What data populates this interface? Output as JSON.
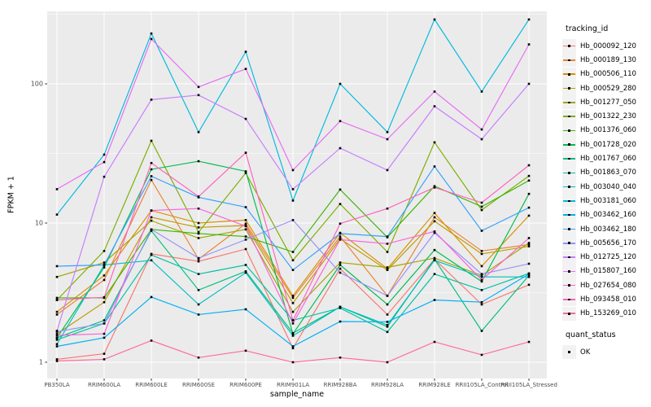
{
  "chart_data": {
    "type": "line",
    "x_title": "sample_name",
    "y_title": "FPKM + 1",
    "y_scale": "log10",
    "ylim": [
      1,
      330
    ],
    "grid": "white major and minor gridlines on gray panel",
    "legend_position": "right",
    "panel_bg": "#EBEBEB",
    "key_bg": "#F2F2F2",
    "axis_text_color": "#4D4D4D",
    "y_ticks": [
      {
        "label": "1",
        "value": 1
      },
      {
        "label": "10",
        "value": 10
      },
      {
        "label": "100",
        "value": 100
      }
    ],
    "categories": [
      "PB350LA",
      "RRIM600LA",
      "RRIM600LE",
      "RRIM600SE",
      "RRIM600PE",
      "RRIM901LA",
      "RRIM928BA",
      "RRIM928LA",
      "RRIM928LE",
      "RRII105LA_Control",
      "RRII105LA_Stressed"
    ],
    "series": [
      {
        "name": "Hb_000092_120",
        "color": "#F8766D",
        "values": [
          1.05,
          1.15,
          6.0,
          5.3,
          6.5,
          1.26,
          4.7,
          2.2,
          5.5,
          2.6,
          3.6
        ]
      },
      {
        "name": "Hb_000189_130",
        "color": "#EA8331",
        "values": [
          2.2,
          3.9,
          20.4,
          5.5,
          9.9,
          2.9,
          8.0,
          3.0,
          11.0,
          6.3,
          7.0
        ]
      },
      {
        "name": "Hb_000506_110",
        "color": "#D89000",
        "values": [
          2.3,
          4.2,
          12.3,
          10.0,
          10.5,
          3.0,
          8.5,
          4.7,
          11.8,
          4.9,
          11.3
        ]
      },
      {
        "name": "Hb_000529_280",
        "color": "#C09B00",
        "values": [
          1.6,
          2.7,
          11.0,
          9.3,
          9.6,
          2.66,
          7.7,
          4.6,
          10.3,
          6.0,
          6.8
        ]
      },
      {
        "name": "Hb_001277_050",
        "color": "#A3A500",
        "values": [
          4.1,
          5.2,
          10.4,
          7.8,
          9.0,
          2.3,
          5.2,
          4.8,
          5.6,
          4.2,
          7.2
        ]
      },
      {
        "name": "Hb_001322_230",
        "color": "#7CAE00",
        "values": [
          2.8,
          6.3,
          39.0,
          8.6,
          22.9,
          5.4,
          13.7,
          6.2,
          38.0,
          12.4,
          21.8
        ]
      },
      {
        "name": "Hb_001376_060",
        "color": "#39B600",
        "values": [
          2.9,
          2.9,
          9.0,
          8.4,
          8.0,
          6.2,
          17.4,
          7.9,
          18.4,
          13.1,
          20.2
        ]
      },
      {
        "name": "Hb_001728_020",
        "color": "#00BB4E",
        "values": [
          1.5,
          4.8,
          24.3,
          27.8,
          23.5,
          1.6,
          5.0,
          2.6,
          6.4,
          3.8,
          16.2
        ]
      },
      {
        "name": "Hb_001767_060",
        "color": "#00BF7D",
        "values": [
          1.5,
          2.0,
          8.8,
          3.3,
          4.5,
          1.62,
          2.5,
          1.8,
          5.5,
          1.68,
          4.2
        ]
      },
      {
        "name": "Hb_001863_070",
        "color": "#00C1A3",
        "values": [
          1.45,
          1.9,
          5.9,
          4.3,
          5.0,
          2.0,
          2.45,
          1.65,
          4.3,
          3.3,
          4.35
        ]
      },
      {
        "name": "Hb_003040_040",
        "color": "#00BFC4",
        "values": [
          1.35,
          5.0,
          5.4,
          2.6,
          4.4,
          1.55,
          2.5,
          1.85,
          5.4,
          4.1,
          4.1
        ]
      },
      {
        "name": "Hb_003181_060",
        "color": "#00BAE0",
        "values": [
          11.5,
          31.0,
          230.0,
          45.0,
          170.0,
          14.5,
          100.0,
          45.0,
          290.0,
          88.0,
          290.0
        ]
      },
      {
        "name": "Hb_003462_160",
        "color": "#00B0F6",
        "values": [
          1.3,
          1.5,
          2.94,
          2.2,
          2.4,
          1.3,
          1.96,
          1.95,
          2.8,
          2.7,
          4.3
        ]
      },
      {
        "name": "Hb_003462_180",
        "color": "#35A2FF",
        "values": [
          4.9,
          5.0,
          21.7,
          15.3,
          13.0,
          4.6,
          8.4,
          8.0,
          25.5,
          8.8,
          12.9
        ]
      },
      {
        "name": "Hb_005656_170",
        "color": "#9590FF",
        "values": [
          1.66,
          1.9,
          9.0,
          5.6,
          7.6,
          10.5,
          4.4,
          3.0,
          8.5,
          4.3,
          5.1
        ]
      },
      {
        "name": "Hb_012725_120",
        "color": "#C77CFF",
        "values": [
          1.68,
          21.5,
          77.0,
          83.0,
          56.0,
          17.5,
          34.5,
          24.0,
          69.0,
          40.0,
          100.0
        ]
      },
      {
        "name": "Hb_015807_160",
        "color": "#E76BF3",
        "values": [
          17.5,
          27.4,
          210.0,
          95.0,
          128.0,
          24.0,
          54.0,
          40.0,
          88.0,
          47.0,
          192.0
        ]
      },
      {
        "name": "Hb_027654_080",
        "color": "#FA62DB",
        "values": [
          1.56,
          1.6,
          12.3,
          12.7,
          9.5,
          1.9,
          7.6,
          7.1,
          8.7,
          3.9,
          7.8
        ]
      },
      {
        "name": "Hb_093458_010",
        "color": "#FF62BC",
        "values": [
          2.8,
          2.93,
          27.0,
          15.5,
          32.0,
          2.0,
          9.9,
          12.7,
          18.0,
          14.0,
          26.0
        ]
      },
      {
        "name": "Hb_153269_010",
        "color": "#FF6A98",
        "values": [
          1.02,
          1.05,
          1.43,
          1.08,
          1.21,
          1.0,
          1.08,
          1.0,
          1.4,
          1.13,
          1.4
        ]
      }
    ],
    "legend": {
      "tracking_title": "tracking_id",
      "quant_title": "quant_status",
      "quant_items": [
        {
          "label": "OK"
        }
      ]
    }
  }
}
